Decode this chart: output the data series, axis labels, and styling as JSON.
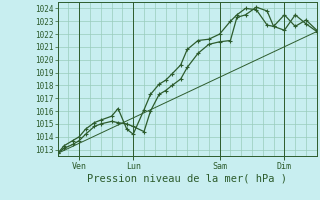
{
  "bg_color": "#c8eef0",
  "grid_color": "#99ccbb",
  "line_color": "#2d5c2d",
  "marker_color": "#2d5c2d",
  "xlabel": "Pression niveau de la mer( hPa )",
  "ylim": [
    1012.5,
    1024.5
  ],
  "xlim": [
    0,
    12
  ],
  "yticks": [
    1013,
    1014,
    1015,
    1016,
    1017,
    1018,
    1019,
    1020,
    1021,
    1022,
    1023,
    1024
  ],
  "x_tick_labels": [
    "Ven",
    "Lun",
    "Sam",
    "Dim"
  ],
  "x_tick_positions": [
    1.0,
    3.5,
    7.5,
    10.5
  ],
  "vline_positions": [
    1.0,
    3.5,
    7.5,
    10.5
  ],
  "series1_x": [
    0,
    0.3,
    0.7,
    1.0,
    1.3,
    1.7,
    2.0,
    2.5,
    2.8,
    3.2,
    3.5,
    4.0,
    4.3,
    4.7,
    5.0,
    5.3,
    5.7,
    6.0,
    6.5,
    7.0,
    7.5,
    8.0,
    8.3,
    8.7,
    9.2,
    9.7,
    10.0,
    10.5,
    11.0,
    11.5,
    12.0
  ],
  "series1_y": [
    1012.7,
    1013.1,
    1013.4,
    1013.7,
    1014.2,
    1014.8,
    1015.0,
    1015.2,
    1015.1,
    1015.0,
    1014.8,
    1014.4,
    1016.0,
    1017.3,
    1017.6,
    1018.0,
    1018.5,
    1019.4,
    1020.5,
    1021.2,
    1021.4,
    1021.5,
    1023.3,
    1023.5,
    1024.1,
    1023.8,
    1022.6,
    1022.3,
    1023.5,
    1022.8,
    1022.2
  ],
  "series2_x": [
    0,
    0.3,
    0.7,
    1.0,
    1.3,
    1.7,
    2.0,
    2.5,
    2.8,
    3.2,
    3.5,
    4.0,
    4.3,
    4.7,
    5.0,
    5.3,
    5.7,
    6.0,
    6.5,
    7.0,
    7.5,
    8.0,
    8.3,
    8.7,
    9.2,
    9.7,
    10.0,
    10.5,
    11.0,
    11.5,
    12.0
  ],
  "series2_y": [
    1012.7,
    1013.3,
    1013.7,
    1014.0,
    1014.6,
    1015.1,
    1015.3,
    1015.6,
    1016.2,
    1014.6,
    1014.2,
    1016.1,
    1017.3,
    1018.1,
    1018.4,
    1018.9,
    1019.6,
    1020.8,
    1021.5,
    1021.6,
    1022.0,
    1023.0,
    1023.5,
    1024.0,
    1023.9,
    1022.7,
    1022.6,
    1023.5,
    1022.6,
    1023.1,
    1022.3
  ],
  "series3_x": [
    0,
    12.0
  ],
  "series3_y": [
    1012.7,
    1022.2
  ]
}
